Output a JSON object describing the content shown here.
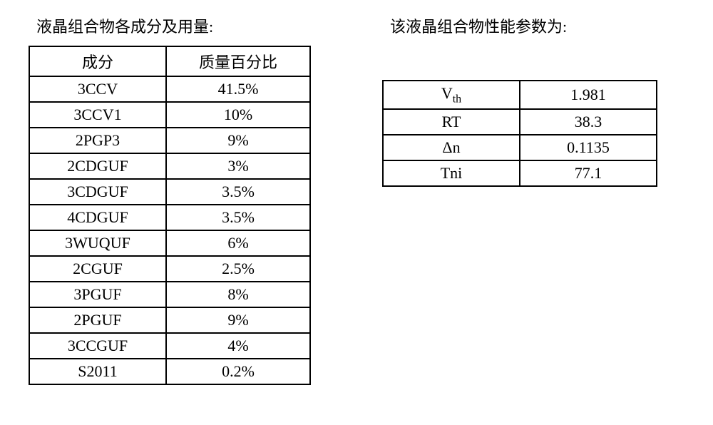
{
  "left": {
    "title": "液晶组合物各成分及用量:",
    "columns": [
      "成分",
      "质量百分比"
    ],
    "rows": [
      [
        "3CCV",
        "41.5%"
      ],
      [
        "3CCV1",
        "10%"
      ],
      [
        "2PGP3",
        "9%"
      ],
      [
        "2CDGUF",
        "3%"
      ],
      [
        "3CDGUF",
        "3.5%"
      ],
      [
        "4CDGUF",
        "3.5%"
      ],
      [
        "3WUQUF",
        "6%"
      ],
      [
        "2CGUF",
        "2.5%"
      ],
      [
        "3PGUF",
        "8%"
      ],
      [
        "2PGUF",
        "9%"
      ],
      [
        "3CCGUF",
        "4%"
      ],
      [
        "S2011",
        "0.2%"
      ]
    ]
  },
  "right": {
    "title": "该液晶组合物性能参数为:",
    "rows": [
      {
        "label_html": "V<sub>th</sub>",
        "value": "1.981"
      },
      {
        "label_html": "RT",
        "value": "38.3"
      },
      {
        "label_html": "Δn",
        "value": "0.1135"
      },
      {
        "label_html": "Tni",
        "value": "77.1"
      }
    ]
  },
  "style": {
    "font_family": "SimSun",
    "border_color": "#000000",
    "background_color": "#ffffff",
    "title_fontsize": 22,
    "cell_fontsize": 22,
    "t1_col_widths": [
      190,
      200
    ],
    "t2_col_widths": [
      190,
      190
    ],
    "type": "table"
  }
}
